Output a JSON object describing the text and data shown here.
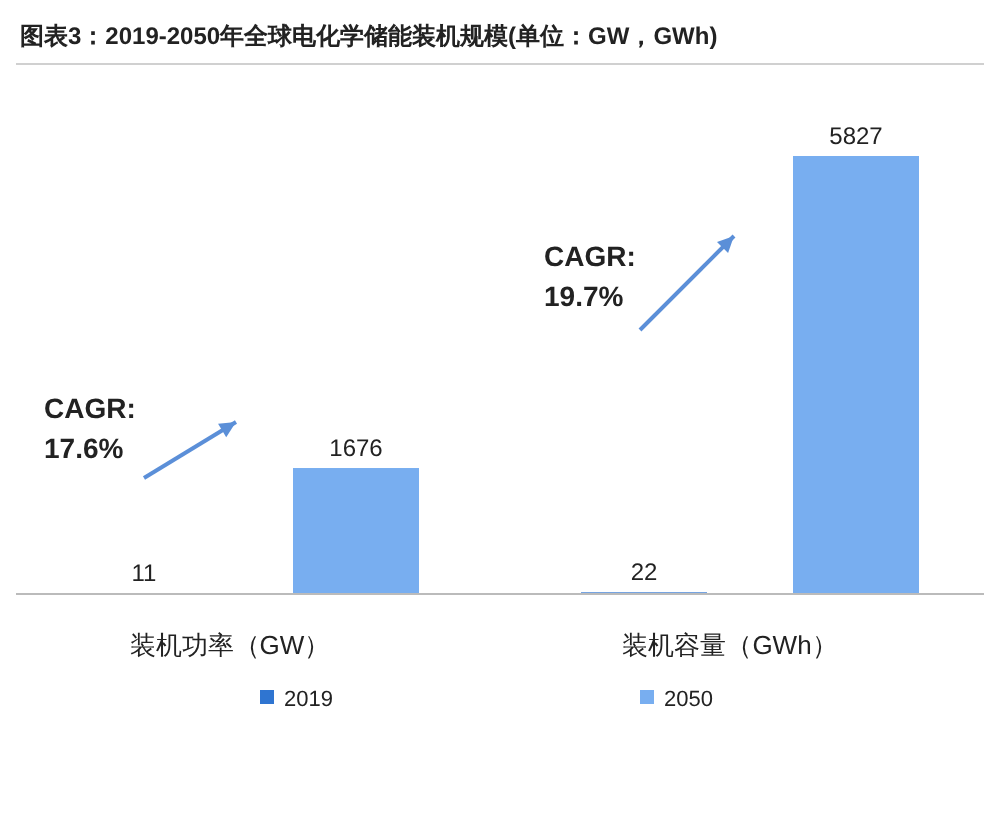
{
  "chart_data": {
    "type": "bar",
    "title": "图表3：2019-2050年全球电化学储能装机规模(单位：GW，GWh)",
    "categories": [
      "装机功率（GW）",
      "装机容量（GWh）"
    ],
    "series": [
      {
        "name": "2019",
        "color": "#2f75d1",
        "values": [
          11,
          22
        ]
      },
      {
        "name": "2050",
        "color": "#78aef0",
        "values": [
          1676,
          5827
        ]
      }
    ],
    "data_labels": true,
    "legend": "bottom",
    "annotations": [
      "CAGR:\n17.6%",
      "CAGR:\n19.7%"
    ]
  }
}
